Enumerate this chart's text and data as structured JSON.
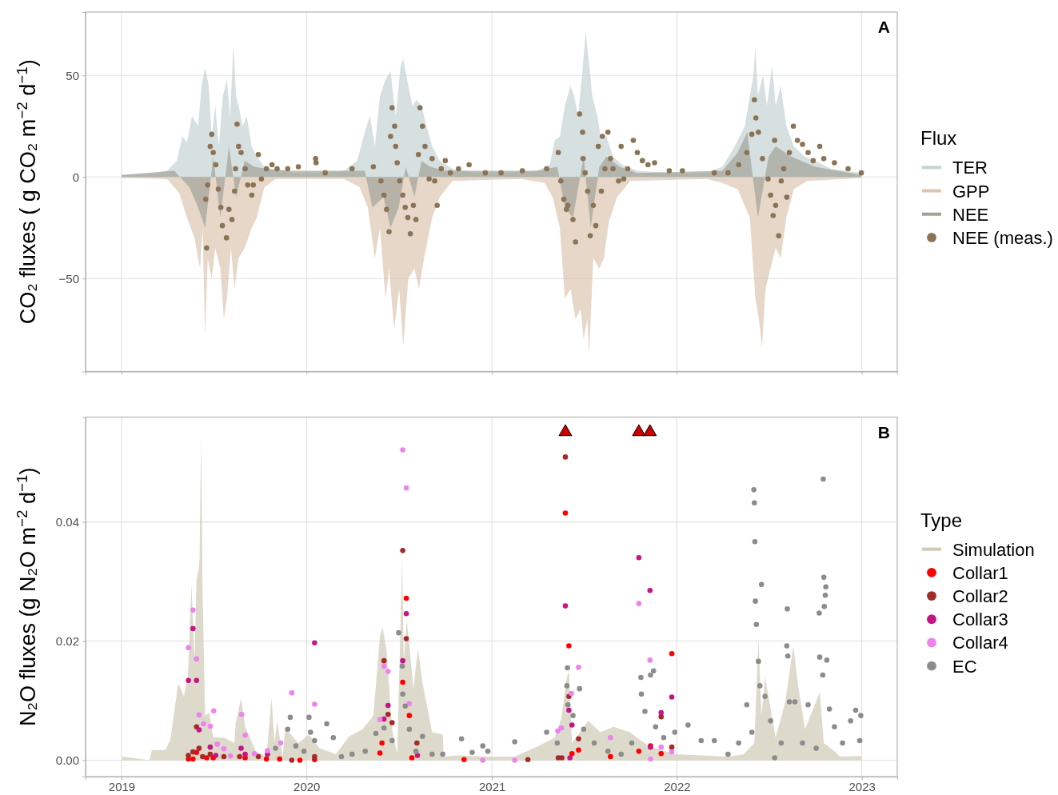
{
  "chart_data": [
    {
      "type": "area",
      "ylabel": "CO₂ fluxes ( g CO₂ m$^{−2}$ d$^{−1}$)",
      "legend_title": "Flux",
      "legend": "right",
      "grid": true,
      "tick_labels": "y",
      "annotations": [
        "A"
      ],
      "xlim": [
        "2018-10-22",
        "2023-03-12"
      ],
      "xticks": [
        "2019",
        "2020",
        "2021",
        "2022",
        "2023"
      ],
      "ylim": [
        -95.8,
        81.2
      ],
      "yticks": [
        {
          "value": -50,
          "label": "−50"
        },
        0,
        50
      ],
      "series": [
        {
          "name": "TER",
          "color": "#c5d3d3",
          "x": [
            "2019-01-01",
            "2019-03-01",
            "2019-04-01",
            "2019-04-20",
            "2019-05-01",
            "2019-05-10",
            "2019-05-20",
            "2019-06-01",
            "2019-06-08",
            "2019-06-15",
            "2019-06-22",
            "2019-06-28",
            "2019-07-05",
            "2019-07-12",
            "2019-07-20",
            "2019-07-28",
            "2019-08-03",
            "2019-08-10",
            "2019-08-15",
            "2019-08-20",
            "2019-08-28",
            "2019-09-05",
            "2019-09-15",
            "2019-09-25",
            "2019-10-10",
            "2019-11-01",
            "2019-12-15",
            "2020-02-01",
            "2020-03-15",
            "2020-04-10",
            "2020-04-25",
            "2020-05-05",
            "2020-05-15",
            "2020-05-25",
            "2020-06-05",
            "2020-06-15",
            "2020-06-25",
            "2020-07-05",
            "2020-07-10",
            "2020-07-20",
            "2020-07-28",
            "2020-08-05",
            "2020-08-15",
            "2020-08-25",
            "2020-09-05",
            "2020-09-20",
            "2020-10-15",
            "2020-12-01",
            "2021-02-01",
            "2021-04-01",
            "2021-04-25",
            "2021-05-05",
            "2021-05-15",
            "2021-05-25",
            "2021-06-05",
            "2021-06-12",
            "2021-06-20",
            "2021-06-28",
            "2021-07-05",
            "2021-07-10",
            "2021-07-18",
            "2021-07-28",
            "2021-08-05",
            "2021-08-15",
            "2021-08-28",
            "2021-09-15",
            "2021-10-15",
            "2021-12-15",
            "2022-03-01",
            "2022-04-01",
            "2022-04-25",
            "2022-05-15",
            "2022-06-01",
            "2022-06-05",
            "2022-06-10",
            "2022-06-20",
            "2022-06-28",
            "2022-07-08",
            "2022-07-15",
            "2022-07-25",
            "2022-08-05",
            "2022-08-20",
            "2022-09-10",
            "2022-10-01",
            "2022-11-01",
            "2022-12-31"
          ],
          "values": [
            1,
            1.5,
            3,
            8,
            20,
            17,
            30,
            25,
            45,
            54,
            45,
            20,
            35,
            15,
            40,
            48,
            30,
            65,
            40,
            35,
            25,
            30,
            15,
            10,
            5,
            3,
            2,
            2,
            3,
            8,
            22,
            30,
            15,
            40,
            48,
            52,
            30,
            55,
            58,
            45,
            35,
            38,
            35,
            25,
            15,
            8,
            4,
            2,
            2,
            3,
            6,
            18,
            20,
            35,
            45,
            40,
            30,
            50,
            72,
            60,
            40,
            30,
            18,
            20,
            10,
            6,
            3,
            2,
            2,
            5,
            15,
            25,
            50,
            64,
            40,
            50,
            35,
            55,
            35,
            45,
            25,
            15,
            10,
            8,
            4,
            2
          ]
        },
        {
          "name": "GPP",
          "color": "#dcc6b0",
          "x": [
            "2019-01-01",
            "2019-04-01",
            "2019-04-25",
            "2019-05-10",
            "2019-05-25",
            "2019-06-05",
            "2019-06-10",
            "2019-06-15",
            "2019-06-20",
            "2019-06-28",
            "2019-07-05",
            "2019-07-15",
            "2019-07-22",
            "2019-07-28",
            "2019-08-05",
            "2019-08-12",
            "2019-08-20",
            "2019-09-01",
            "2019-09-15",
            "2019-09-25",
            "2019-10-10",
            "2019-11-01",
            "2020-03-15",
            "2020-04-15",
            "2020-05-01",
            "2020-05-15",
            "2020-05-25",
            "2020-06-05",
            "2020-06-12",
            "2020-06-22",
            "2020-07-02",
            "2020-07-10",
            "2020-07-20",
            "2020-08-01",
            "2020-08-10",
            "2020-08-20",
            "2020-09-05",
            "2020-09-20",
            "2020-10-15",
            "2021-03-01",
            "2021-04-15",
            "2021-05-01",
            "2021-05-15",
            "2021-05-25",
            "2021-06-05",
            "2021-06-15",
            "2021-06-25",
            "2021-07-01",
            "2021-07-08",
            "2021-07-12",
            "2021-07-20",
            "2021-08-01",
            "2021-08-10",
            "2021-08-20",
            "2021-09-05",
            "2021-10-01",
            "2022-03-01",
            "2022-04-01",
            "2022-05-01",
            "2022-05-25",
            "2022-06-05",
            "2022-06-12",
            "2022-06-18",
            "2022-06-25",
            "2022-07-05",
            "2022-07-15",
            "2022-07-25",
            "2022-08-05",
            "2022-08-20",
            "2022-09-15",
            "2022-12-31"
          ],
          "values": [
            -0.5,
            -1,
            -8,
            -20,
            -30,
            -45,
            -25,
            -79,
            -40,
            -50,
            -35,
            -45,
            -70,
            -60,
            -35,
            -55,
            -40,
            -35,
            -25,
            -20,
            -5,
            -1,
            -1,
            -5,
            -15,
            -40,
            -25,
            -60,
            -45,
            -75,
            -55,
            -83,
            -50,
            -45,
            -55,
            -40,
            -20,
            -10,
            -2,
            -1,
            -3,
            -10,
            -25,
            -60,
            -55,
            -70,
            -65,
            -80,
            -70,
            -87,
            -40,
            -45,
            -40,
            -22,
            -10,
            -2,
            -1,
            -3,
            -6,
            -20,
            -60,
            -70,
            -84,
            -55,
            -45,
            -35,
            -40,
            -20,
            -6,
            -2,
            -0.5
          ]
        },
        {
          "name": "NEE",
          "color": "#a3a298",
          "x": [
            "2019-01-01",
            "2019-04-15",
            "2019-05-15",
            "2019-06-01",
            "2019-06-15",
            "2019-07-01",
            "2019-07-15",
            "2019-08-01",
            "2019-08-15",
            "2019-09-01",
            "2019-09-20",
            "2019-10-15",
            "2019-12-01",
            "2020-03-01",
            "2020-04-25",
            "2020-05-10",
            "2020-06-01",
            "2020-06-15",
            "2020-07-01",
            "2020-07-15",
            "2020-08-01",
            "2020-08-15",
            "2020-09-01",
            "2020-10-01",
            "2021-04-01",
            "2021-05-10",
            "2021-05-25",
            "2021-06-10",
            "2021-07-01",
            "2021-07-15",
            "2021-08-01",
            "2021-08-15",
            "2021-09-10",
            "2021-10-15",
            "2022-04-01",
            "2022-05-01",
            "2022-05-20",
            "2022-06-10",
            "2022-07-01",
            "2022-07-15",
            "2022-08-15",
            "2022-10-01",
            "2022-12-31"
          ],
          "values": [
            1,
            3,
            -5,
            -15,
            -25,
            10,
            -20,
            15,
            -10,
            8,
            5,
            4,
            3,
            3,
            3,
            -15,
            -10,
            -25,
            -15,
            5,
            -10,
            8,
            5,
            3,
            3,
            5,
            -15,
            -20,
            10,
            -25,
            5,
            10,
            5,
            2,
            3,
            12,
            22,
            -20,
            10,
            15,
            10,
            5,
            1
          ]
        },
        {
          "name": "NEE (meas.)",
          "type": "scatter",
          "marker": "circle",
          "color": "#8b7355",
          "x": [
            "2019-06-16",
            "2019-06-18",
            "2019-06-20",
            "2019-06-25",
            "2019-06-28",
            "2019-07-01",
            "2019-07-06",
            "2019-07-11",
            "2019-07-16",
            "2019-07-19",
            "2019-07-27",
            "2019-08-01",
            "2019-08-07",
            "2019-08-12",
            "2019-08-14",
            "2019-08-17",
            "2019-08-20",
            "2019-08-25",
            "2019-09-02",
            "2019-09-07",
            "2019-09-15",
            "2019-09-18",
            "2019-09-28",
            "2019-10-04",
            "2019-10-14",
            "2019-10-25",
            "2019-11-04",
            "2019-11-25",
            "2019-12-16",
            "2020-01-19",
            "2020-01-20",
            "2020-02-07",
            "2020-03-31",
            "2020-05-12",
            "2020-05-27",
            "2020-06-02",
            "2020-06-07",
            "2020-06-12",
            "2020-06-15",
            "2020-06-18",
            "2020-06-23",
            "2020-06-25",
            "2020-06-28",
            "2020-07-03",
            "2020-07-09",
            "2020-07-14",
            "2020-07-19",
            "2020-07-24",
            "2020-07-30",
            "2020-08-04",
            "2020-08-09",
            "2020-08-12",
            "2020-08-17",
            "2020-08-22",
            "2020-08-30",
            "2020-09-05",
            "2020-09-10",
            "2020-09-15",
            "2020-09-23",
            "2020-10-01",
            "2020-10-11",
            "2020-10-27",
            "2020-11-17",
            "2020-12-19",
            "2021-01-19",
            "2021-03-02",
            "2021-04-19",
            "2021-05-12",
            "2021-05-17",
            "2021-05-23",
            "2021-05-28",
            "2021-05-31",
            "2021-06-10",
            "2021-06-15",
            "2021-06-23",
            "2021-06-29",
            "2021-06-30",
            "2021-07-04",
            "2021-07-09",
            "2021-07-14",
            "2021-07-20",
            "2021-07-25",
            "2021-07-30",
            "2021-08-05",
            "2021-08-07",
            "2021-08-12",
            "2021-08-18",
            "2021-08-23",
            "2021-08-28",
            "2021-09-08",
            "2021-09-13",
            "2021-09-18",
            "2021-09-26",
            "2021-10-07",
            "2021-10-15",
            "2021-10-25",
            "2021-11-05",
            "2021-11-18",
            "2021-12-17",
            "2022-01-12",
            "2022-03-16",
            "2022-04-12",
            "2022-05-03",
            "2022-05-19",
            "2022-05-29",
            "2022-06-03",
            "2022-06-06",
            "2022-06-11",
            "2022-06-19",
            "2022-06-30",
            "2022-07-05",
            "2022-07-10",
            "2022-07-13",
            "2022-07-15",
            "2022-07-21",
            "2022-07-26",
            "2022-07-31",
            "2022-08-06",
            "2022-08-11",
            "2022-08-19",
            "2022-08-27",
            "2022-09-06",
            "2022-09-17",
            "2022-09-27",
            "2022-10-10",
            "2022-10-18",
            "2022-11-08",
            "2022-12-05",
            "2022-12-31"
          ],
          "values": [
            -11,
            -35,
            -4,
            15,
            21,
            12,
            6,
            -6,
            -15,
            -24,
            -30,
            -16,
            -21,
            -7,
            4,
            26,
            15,
            12,
            4,
            -4,
            -9,
            -4,
            11,
            -1,
            4,
            6,
            4,
            4,
            5,
            9,
            7,
            2,
            4,
            5,
            -2,
            -9,
            -16,
            -27,
            20,
            34,
            25,
            15,
            7,
            -2,
            -9,
            -15,
            -20,
            -28,
            -14,
            -21,
            11,
            34,
            25,
            15,
            -1,
            9,
            -2,
            -14,
            4,
            8,
            2,
            4,
            6,
            2,
            2,
            3,
            4,
            12,
            -2,
            -11,
            -16,
            -14,
            -21,
            -32,
            31,
            22,
            9,
            2,
            -7,
            -29,
            -14,
            -24,
            15,
            -7,
            20,
            4,
            22,
            9,
            4,
            -2,
            15,
            -1,
            4,
            18,
            12,
            8,
            6,
            7,
            3,
            3,
            2,
            2,
            6,
            12,
            21,
            38,
            29,
            22,
            9,
            -1,
            -9,
            -19,
            18,
            -14,
            -29,
            -2,
            4,
            -10,
            12,
            25,
            18,
            16,
            12,
            8,
            15,
            9,
            7,
            4,
            2
          ]
        }
      ]
    },
    {
      "type": "scatter",
      "ylabel": "N₂O fluxes (g N₂O m$^{−2}$ d$^{−1}$)",
      "legend_title": "Type",
      "legend": "right",
      "grid": true,
      "annotations": [
        "B"
      ],
      "xlim": [
        "2018-10-22",
        "2023-03-12"
      ],
      "xticks": [
        "2019",
        "2020",
        "2021",
        "2022",
        "2023"
      ],
      "ylim": [
        -0.00275,
        0.0576
      ],
      "yticks": [
        {
          "value": 0,
          "label": "0.00"
        },
        {
          "value": 0.02,
          "label": "0.02"
        },
        {
          "value": 0.04,
          "label": "0.04"
        }
      ],
      "series": [
        {
          "name": "Simulation",
          "type": "area",
          "color": "#cfcab5",
          "x": [
            "2019-01-02",
            "2019-02-25",
            "2019-03-02",
            "2019-03-28",
            "2019-04-07",
            "2019-04-23",
            "2019-05-04",
            "2019-05-12",
            "2019-05-19",
            "2019-05-25",
            "2019-05-29",
            "2019-06-02",
            "2019-06-04",
            "2019-06-07",
            "2019-06-10",
            "2019-06-15",
            "2019-06-23",
            "2019-07-01",
            "2019-07-22",
            "2019-08-12",
            "2019-08-14",
            "2019-08-25",
            "2019-09-02",
            "2019-09-23",
            "2019-10-14",
            "2019-10-24",
            "2019-10-30",
            "2019-11-04",
            "2019-11-15",
            "2019-11-20",
            "2019-12-16",
            "2020-01-06",
            "2020-01-27",
            "2020-02-28",
            "2020-03-25",
            "2020-04-21",
            "2020-05-12",
            "2020-05-25",
            "2020-05-30",
            "2020-06-07",
            "2020-06-18",
            "2020-06-28",
            "2020-07-08",
            "2020-07-11",
            "2020-07-17",
            "2020-07-23",
            "2020-07-30",
            "2020-08-08",
            "2020-08-17",
            "2020-09-05",
            "2020-09-26",
            "2020-09-28",
            "2020-10-27",
            "2020-12-19",
            "2021-02-15",
            "2021-04-03",
            "2021-05-05",
            "2021-05-18",
            "2021-05-29",
            "2021-06-02",
            "2021-06-08",
            "2021-07-10",
            "2021-08-03",
            "2021-08-29",
            "2021-09-30",
            "2021-11-06",
            "2021-12-28",
            "2022-02-18",
            "2022-04-12",
            "2022-05-13",
            "2022-06-03",
            "2022-06-11",
            "2022-06-17",
            "2022-06-24",
            "2022-07-15",
            "2022-08-03",
            "2022-08-19",
            "2022-08-27",
            "2022-09-11",
            "2022-10-10",
            "2022-10-18",
            "2022-11-08",
            "2022-11-19",
            "2022-12-31"
          ],
          "values": [
            0.0006,
            0,
            0.0017,
            0.0017,
            0.0033,
            0.013,
            0.0107,
            0.0143,
            0.0295,
            0.0166,
            0.0304,
            0.0318,
            0.034,
            0.0546,
            0.028,
            0.0075,
            0.008,
            0.0038,
            0.0038,
            0.0029,
            0.0061,
            0.0104,
            0.0056,
            0.0015,
            0.0006,
            0.0104,
            0.0029,
            0.0066,
            0.0006,
            0.0054,
            0.0029,
            0.0043,
            0.002,
            0.001,
            0.004,
            0.0052,
            0.0075,
            0.0208,
            0.0224,
            0.0185,
            0.0052,
            0.001,
            0.0338,
            0.0166,
            0.0235,
            0.0185,
            0.012,
            0.0187,
            0.013,
            0.0047,
            0.0043,
            0.0006,
            0.0008,
            0.0006,
            0.0006,
            0.0024,
            0.0038,
            0.007,
            0.014,
            0.0148,
            0.0029,
            0.0066,
            0.0047,
            0.0056,
            0.0047,
            0.0024,
            0.001,
            0.0008,
            0.0006,
            0.001,
            0.0029,
            0.0205,
            0.0075,
            0.014,
            0.0038,
            0.0098,
            0.0192,
            0.0133,
            0.0052,
            0.0114,
            0.0029,
            0.0015,
            0.0006,
            0.0007
          ]
        },
        {
          "name": "Collar1",
          "marker": "circle",
          "color": "#ff0000",
          "x": [
            "2019-05-13",
            "2019-05-22",
            "2019-05-29",
            "2019-06-18",
            "2019-07-01",
            "2019-09-02",
            "2019-10-14",
            "2019-11-09",
            "2019-12-19",
            "2020-01-17",
            "2020-05-25",
            "2020-05-29",
            "2020-07-09",
            "2020-07-16",
            "2020-07-22",
            "2020-07-27",
            "2020-11-07",
            "2021-05-26",
            "2021-06-02",
            "2021-06-08",
            "2021-06-21",
            "2021-08-23",
            "2021-10-18",
            "2021-11-10",
            "2021-12-01",
            "2021-12-22"
          ],
          "values": [
            0.0002,
            0.0002,
            0.0013,
            0.0004,
            0.0004,
            0.0004,
            0.0002,
            0.0002,
            0,
            0.0001,
            0.0012,
            0.0029,
            0.0131,
            0.0272,
            0.0075,
            0.0004,
            0.0001,
            0.0415,
            0.0192,
            0.0011,
            0.0017,
            0.0006,
            0.0015,
            0.0024,
            0.0011,
            0.0179
          ]
        },
        {
          "name": "Collar2",
          "marker": "circle",
          "color": "#a52a2a",
          "x": [
            "2019-05-13",
            "2019-05-22",
            "2019-05-29",
            "2019-06-03",
            "2019-06-10",
            "2019-06-25",
            "2019-07-22",
            "2019-08-22",
            "2019-09-28",
            "2019-12-03",
            "2020-01-17",
            "2020-06-02",
            "2020-06-10",
            "2020-06-18",
            "2020-07-09",
            "2020-07-16",
            "2020-08-06",
            "2021-03-13",
            "2021-05-12",
            "2021-05-19",
            "2021-05-26",
            "2021-06-02",
            "2021-06-21",
            "2021-12-01",
            "2021-12-22"
          ],
          "values": [
            0.0008,
            0.0014,
            0.0056,
            0.002,
            0.0006,
            0.001,
            0.0006,
            0.0006,
            0.0006,
            0,
            0.0006,
            0.0167,
            0.0077,
            0.0063,
            0.0352,
            0.0204,
            0.0029,
            0.0001,
            0.0004,
            0.0004,
            0.0509,
            0.0107,
            0.0036,
            0.0073,
            0.0022
          ]
        },
        {
          "name": "Collar3",
          "marker": "circle",
          "color": "#c71585",
          "x": [
            "2019-05-13",
            "2019-05-22",
            "2019-05-29",
            "2019-06-03",
            "2019-06-25",
            "2019-07-06",
            "2019-08-25",
            "2019-09-02",
            "2019-10-16",
            "2020-01-17",
            "2020-06-02",
            "2020-06-10",
            "2020-07-09",
            "2020-07-16",
            "2020-08-07",
            "2021-05-26",
            "2021-06-02",
            "2021-06-04",
            "2021-06-08",
            "2021-10-18",
            "2021-11-09",
            "2021-11-10",
            "2021-12-01",
            "2021-12-22"
          ],
          "values": [
            0.0134,
            0.0221,
            0.0134,
            0.0051,
            0.0022,
            0.0008,
            0.002,
            0.001,
            0.001,
            0.0197,
            0.0069,
            0.0092,
            0.0167,
            0.0246,
            0.0008,
            0.0259,
            0.0084,
            0.0004,
            0.0059,
            0.034,
            0.0285,
            0.0022,
            0.008,
            0.0106
          ]
        },
        {
          "name": "Collar4",
          "marker": "circle",
          "color": "#ee82ee",
          "x": [
            "2019-05-13",
            "2019-05-22",
            "2019-05-29",
            "2019-06-03",
            "2019-06-12",
            "2019-06-25",
            "2019-07-02",
            "2019-07-09",
            "2019-07-22",
            "2019-08-04",
            "2019-08-26",
            "2019-09-02",
            "2019-09-20",
            "2019-10-16",
            "2019-11-11",
            "2019-12-03",
            "2020-01-17",
            "2020-05-25",
            "2020-06-02",
            "2020-06-10",
            "2020-07-09",
            "2020-07-16",
            "2020-07-22",
            "2020-12-14",
            "2021-02-15",
            "2021-05-11",
            "2021-05-18",
            "2021-06-07",
            "2021-06-21",
            "2021-08-23",
            "2021-10-18",
            "2021-11-09",
            "2021-11-10",
            "2021-12-01",
            "2021-12-22"
          ],
          "values": [
            0.0189,
            0.0252,
            0.017,
            0.0076,
            0.0061,
            0.0057,
            0.0083,
            0.0027,
            0.0019,
            0.0007,
            0.0077,
            0.0042,
            0.0011,
            0.0016,
            0.0029,
            0.0113,
            0.0094,
            0.0068,
            0.0158,
            0.0149,
            0.0521,
            0.0457,
            0.0095,
            0,
            0,
            0.0049,
            0.0054,
            0.0112,
            0.0156,
            0.0038,
            0.0263,
            0.0168,
            0.0002,
            0.0022,
            0.0014
          ]
        },
        {
          "name": "EC",
          "marker": "circle",
          "color": "#8c8c8c",
          "x": [
            "2019-11-01",
            "2019-11-25",
            "2019-11-30",
            "2019-12-11",
            "2019-12-27",
            "2020-01-06",
            "2020-01-09",
            "2020-01-17",
            "2020-02-10",
            "2020-02-23",
            "2020-03-10",
            "2020-03-31",
            "2020-04-26",
            "2020-05-17",
            "2020-06-02",
            "2020-06-18",
            "2020-07-01",
            "2020-07-08",
            "2020-07-09",
            "2020-07-14",
            "2020-07-22",
            "2020-08-04",
            "2020-08-17",
            "2020-09-05",
            "2020-09-26",
            "2020-11-02",
            "2020-11-23",
            "2020-12-14",
            "2020-12-24",
            "2021-02-15",
            "2021-04-19",
            "2021-05-10",
            "2021-05-29",
            "2021-05-30",
            "2021-05-31",
            "2021-06-10",
            "2021-06-23",
            "2021-07-01",
            "2021-07-22",
            "2021-08-18",
            "2021-09-13",
            "2021-10-04",
            "2021-10-22",
            "2021-10-23",
            "2021-10-30",
            "2021-11-10",
            "2021-11-16",
            "2021-11-20",
            "2021-12-06",
            "2021-12-28",
            "2022-01-23",
            "2022-02-18",
            "2022-03-16",
            "2022-04-12",
            "2022-05-03",
            "2022-05-19",
            "2022-05-29",
            "2022-06-02",
            "2022-06-03",
            "2022-06-04",
            "2022-06-05",
            "2022-06-07",
            "2022-06-11",
            "2022-06-14",
            "2022-06-17",
            "2022-06-24",
            "2022-07-05",
            "2022-07-13",
            "2022-07-26",
            "2022-08-06",
            "2022-08-07",
            "2022-08-08",
            "2022-08-11",
            "2022-08-22",
            "2022-09-06",
            "2022-09-17",
            "2022-10-03",
            "2022-10-09",
            "2022-10-10",
            "2022-10-16",
            "2022-10-17",
            "2022-10-18",
            "2022-10-19",
            "2022-10-21",
            "2022-10-22",
            "2022-10-24",
            "2022-10-29",
            "2022-11-08",
            "2022-11-24",
            "2022-12-10",
            "2022-12-20",
            "2022-12-28",
            "2022-12-30"
          ],
          "values": [
            0.002,
            0.0052,
            0.0072,
            0.0024,
            0.0015,
            0.0072,
            0.0047,
            0.0033,
            0.0061,
            0.0038,
            0.0006,
            0.001,
            0.0015,
            0.0045,
            0.0054,
            0.0033,
            0.0214,
            0.0158,
            0.0111,
            0.0091,
            0.0052,
            0.0015,
            0.004,
            0.001,
            0.001,
            0.0036,
            0.0013,
            0.0024,
            0.0015,
            0.0031,
            0.0047,
            0.0029,
            0.0125,
            0.0155,
            0.0093,
            0.0075,
            0.012,
            0.0052,
            0.0029,
            0.0015,
            0.001,
            0.0029,
            0.0139,
            0.0111,
            0.0082,
            0.0143,
            0.015,
            0.0056,
            0.0038,
            0.0047,
            0.0059,
            0.0033,
            0.0033,
            0.001,
            0.0029,
            0.0093,
            0.0047,
            0.0454,
            0.0432,
            0.0367,
            0.0267,
            0.0228,
            0.0166,
            0.0125,
            0.0295,
            0.0107,
            0.0066,
            0.0004,
            0.0029,
            0.0192,
            0.0254,
            0.0175,
            0.0098,
            0.0098,
            0.0029,
            0.0093,
            0.002,
            0.0247,
            0.0173,
            0.0143,
            0.0472,
            0.0307,
            0.0258,
            0.0277,
            0.0291,
            0.0168,
            0.0086,
            0.0056,
            0.0029,
            0.0066,
            0.0084,
            0.0033,
            0.0075
          ]
        },
        {
          "marker": "triangle",
          "color": "#cc0000",
          "x": [
            "2021-05-26",
            "2021-10-18",
            "2021-11-09"
          ],
          "values": [
            0.0551,
            0.0551,
            0.0551
          ]
        }
      ]
    }
  ]
}
